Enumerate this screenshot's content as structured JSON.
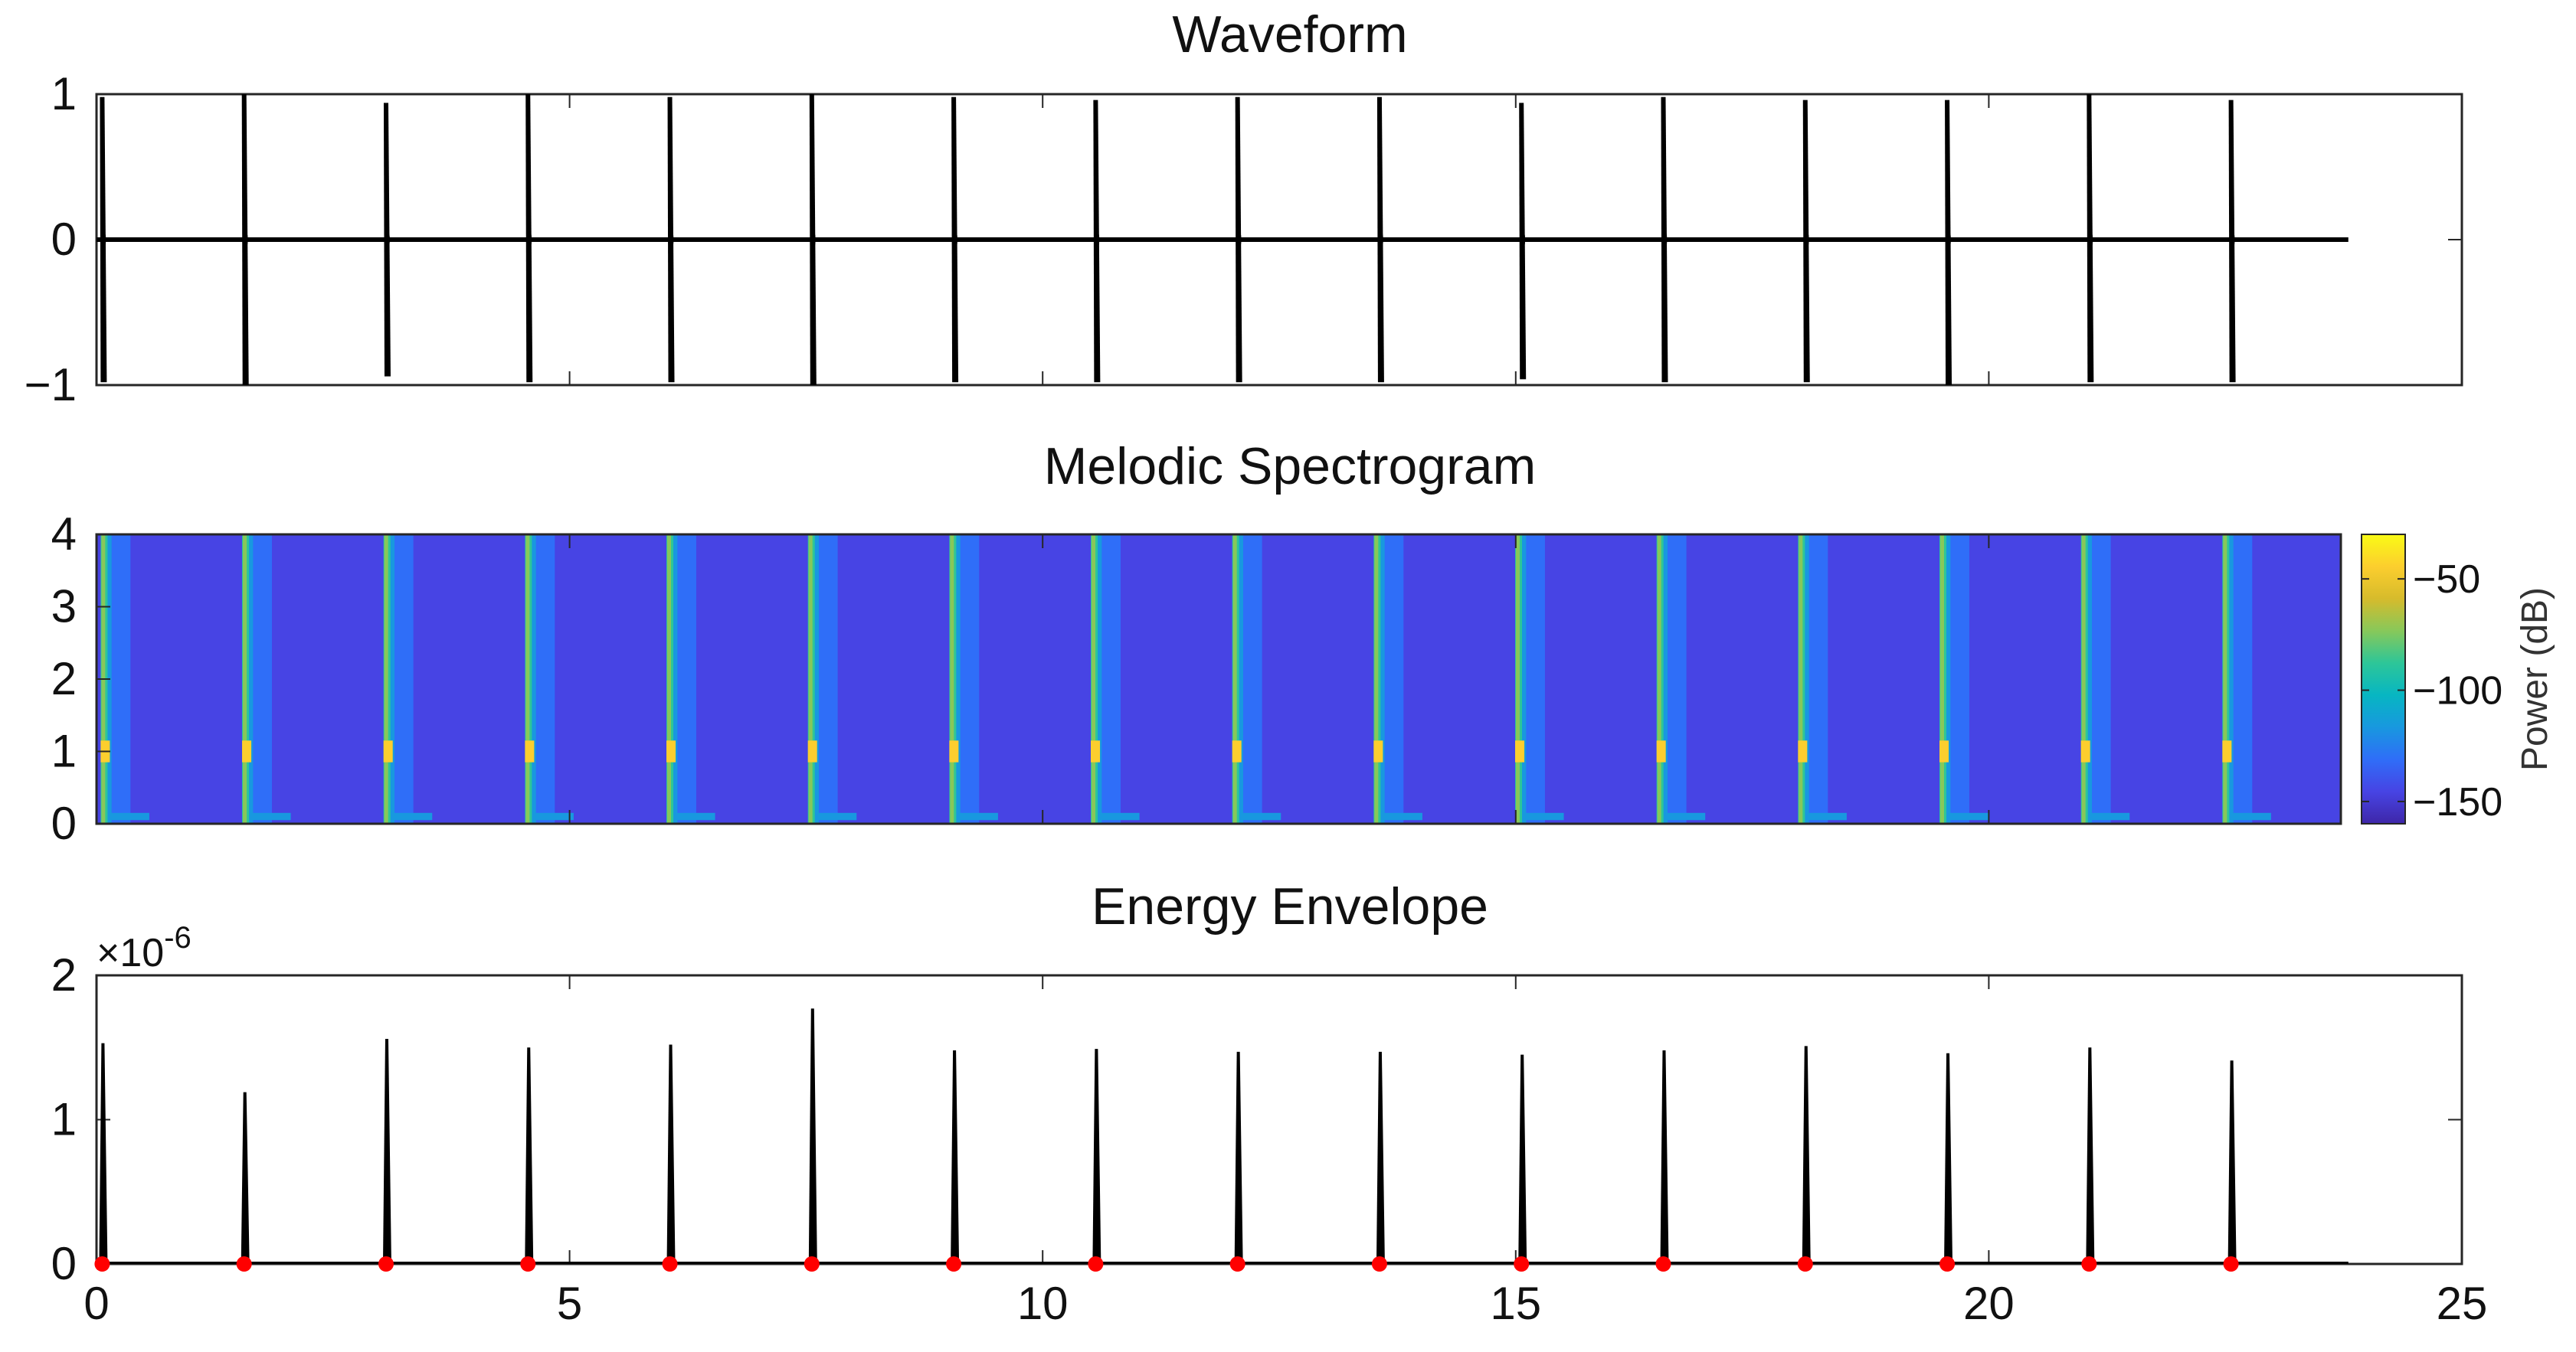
{
  "chart_data": [
    {
      "id": "waveform",
      "type": "line",
      "title": "Waveform",
      "xlim": [
        0,
        25
      ],
      "ylim": [
        -1,
        1
      ],
      "yticks": [
        1,
        0,
        -1
      ],
      "ytick_labels": [
        "1",
        "0",
        "−1"
      ],
      "series": [
        {
          "name": "waveform",
          "color": "#000000",
          "signal_end": 23.8,
          "spikes": [
            {
              "t": 0.06,
              "max": 0.98,
              "min": -0.98
            },
            {
              "t": 1.56,
              "max": 1.0,
              "min": -1.0
            },
            {
              "t": 3.06,
              "max": 0.94,
              "min": -0.94
            },
            {
              "t": 4.56,
              "max": 1.0,
              "min": -0.98
            },
            {
              "t": 6.06,
              "max": 0.98,
              "min": -0.98
            },
            {
              "t": 7.56,
              "max": 1.0,
              "min": -1.0
            },
            {
              "t": 9.06,
              "max": 0.98,
              "min": -0.98
            },
            {
              "t": 10.56,
              "max": 0.96,
              "min": -0.98
            },
            {
              "t": 12.06,
              "max": 0.98,
              "min": -0.98
            },
            {
              "t": 13.56,
              "max": 0.98,
              "min": -0.98
            },
            {
              "t": 15.06,
              "max": 0.94,
              "min": -0.96
            },
            {
              "t": 16.56,
              "max": 0.98,
              "min": -0.98
            },
            {
              "t": 18.06,
              "max": 0.96,
              "min": -0.98
            },
            {
              "t": 19.56,
              "max": 0.96,
              "min": -1.0
            },
            {
              "t": 21.06,
              "max": 1.0,
              "min": -0.98
            },
            {
              "t": 22.56,
              "max": 0.96,
              "min": -0.98
            }
          ]
        }
      ]
    },
    {
      "id": "spectrogram",
      "type": "heatmap",
      "title": "Melodic Spectrogram",
      "xlim": [
        0,
        25
      ],
      "ylim": [
        0,
        4
      ],
      "yticks": [
        4,
        3,
        2,
        1,
        0
      ],
      "ytick_labels": [
        "4",
        "3",
        "2",
        "1",
        "0"
      ],
      "data_xlim": [
        0,
        23.8
      ],
      "background_db": -150,
      "onsets": [
        0.06,
        1.56,
        3.06,
        4.56,
        6.06,
        7.56,
        9.06,
        10.56,
        12.06,
        13.56,
        15.06,
        16.56,
        18.06,
        19.56,
        21.06,
        22.56
      ],
      "onset_peak_db": -40,
      "onset_peak_freq": 1,
      "colorbar": {
        "label": "Power (dB)",
        "range": [
          -160,
          -30
        ],
        "ticks": [
          -50,
          -100,
          -150
        ],
        "tick_labels": [
          "−50",
          "−100",
          "−150"
        ],
        "colormap": [
          "#3e26a8",
          "#4744e4",
          "#2f6ef8",
          "#1898df",
          "#07b6c2",
          "#2dc698",
          "#87c85a",
          "#d6bb2c",
          "#fcce2e",
          "#f9fb15"
        ]
      }
    },
    {
      "id": "energy",
      "type": "line",
      "title": "Energy Envelope",
      "xlim": [
        0,
        25
      ],
      "ylim": [
        0,
        2
      ],
      "xticks": [
        0,
        5,
        10,
        15,
        20,
        25
      ],
      "xtick_labels": [
        "0",
        "5",
        "10",
        "15",
        "20",
        "25"
      ],
      "yticks": [
        2,
        1,
        0
      ],
      "ytick_labels": [
        "2",
        "1",
        "0"
      ],
      "exponent_base": "×10",
      "exponent_power": "-6",
      "series": [
        {
          "name": "energy",
          "color": "#000000",
          "signal_end": 23.8,
          "peaks": [
            {
              "t": 0.06,
              "v": 1.53
            },
            {
              "t": 1.56,
              "v": 1.19
            },
            {
              "t": 3.06,
              "v": 1.56
            },
            {
              "t": 4.56,
              "v": 1.5
            },
            {
              "t": 6.06,
              "v": 1.52
            },
            {
              "t": 7.56,
              "v": 1.77
            },
            {
              "t": 9.06,
              "v": 1.48
            },
            {
              "t": 10.56,
              "v": 1.49
            },
            {
              "t": 12.06,
              "v": 1.47
            },
            {
              "t": 13.56,
              "v": 1.47
            },
            {
              "t": 15.06,
              "v": 1.45
            },
            {
              "t": 16.56,
              "v": 1.48
            },
            {
              "t": 18.06,
              "v": 1.51
            },
            {
              "t": 19.56,
              "v": 1.46
            },
            {
              "t": 21.06,
              "v": 1.5
            },
            {
              "t": 22.56,
              "v": 1.41
            }
          ]
        },
        {
          "name": "onsets",
          "type": "scatter",
          "color": "#ff0000",
          "x": [
            0.06,
            1.56,
            3.06,
            4.56,
            6.06,
            7.56,
            9.06,
            10.56,
            12.06,
            13.56,
            15.06,
            16.56,
            18.06,
            19.56,
            21.06,
            22.56
          ],
          "y": [
            0,
            0,
            0,
            0,
            0,
            0,
            0,
            0,
            0,
            0,
            0,
            0,
            0,
            0,
            0,
            0
          ]
        }
      ]
    }
  ]
}
